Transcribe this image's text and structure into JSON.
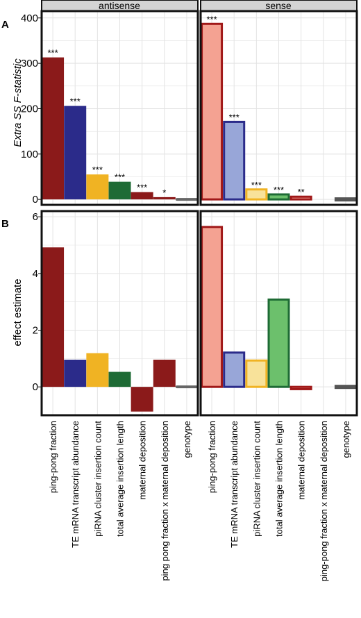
{
  "chart_data": [
    {
      "panel": "A",
      "type": "bar",
      "ylabel": "Extra SS F-statistic",
      "ylim": [
        -12,
        415
      ],
      "yticks": [
        0,
        100,
        200,
        300,
        400
      ],
      "categories": [
        "ping-pong fraction",
        "TE mRNA transcript abundance",
        "piRNA cluster insertion count",
        "total average insertion length",
        "maternal deposition",
        "ping pong fraction x maternal deposition",
        "genotype"
      ],
      "facets": [
        {
          "label": "antisense",
          "values": [
            313,
            206,
            55,
            39,
            16,
            5,
            -3
          ],
          "significance": [
            "***",
            "***",
            "***",
            "***",
            "***",
            "*",
            ""
          ]
        },
        {
          "label": "sense",
          "categories": [
            "ping-pong fraction",
            "TE mRNA transcript abundance",
            "piRNA cluster insertion count",
            "total average insertion length",
            "maternal deposition",
            "ping-pong fraction x maternal deposition",
            "genotype"
          ],
          "values": [
            387,
            171,
            22,
            11,
            6,
            null,
            -3
          ],
          "significance": [
            "***",
            "***",
            "***",
            "***",
            "**",
            "",
            ""
          ]
        }
      ],
      "grid": true,
      "legend": "none"
    },
    {
      "panel": "B",
      "type": "bar",
      "ylabel": "effect estimate",
      "ylim": [
        -1.0,
        6.2
      ],
      "yticks": [
        0,
        2,
        4,
        6
      ],
      "categories": [
        "ping-pong fraction",
        "TE mRNA transcript abundance",
        "piRNA cluster insertion count",
        "total average insertion length",
        "maternal deposition",
        "ping pong fraction x maternal deposition",
        "genotype"
      ],
      "facets": [
        {
          "label": "antisense",
          "values": [
            4.92,
            0.96,
            1.19,
            0.53,
            -0.87,
            0.96,
            -0.32
          ]
        },
        {
          "label": "sense",
          "categories": [
            "ping-pong fraction",
            "TE mRNA transcript abundance",
            "piRNA cluster insertion count",
            "total average insertion length",
            "maternal deposition",
            "ping-pong fraction x maternal deposition",
            "genotype"
          ],
          "values": [
            5.64,
            1.21,
            0.93,
            3.08,
            -0.08,
            null,
            0.07
          ]
        }
      ],
      "grid": true,
      "legend": "none"
    }
  ],
  "colors": {
    "antisense": [
      "#8B1A1A",
      "#2B2B8A",
      "#F0B323",
      "#1E6B35",
      "#8B1A1A",
      "#8B1A1A",
      "#666666"
    ],
    "sense_fill": [
      "#F4A292",
      "#98A6D8",
      "#F8E29A",
      "#6CC06C",
      "#F4A292",
      "#F4A292",
      "#BDBDBD"
    ],
    "sense_border": [
      "#A01818",
      "#2B2B8A",
      "#F0B323",
      "#1E6B35",
      "#A01818",
      "#A01818",
      "#555555"
    ],
    "strip_fill": "#D4D4D4",
    "grid": "#E3E3E3"
  },
  "panels": {
    "a_letter": "A",
    "b_letter": "B"
  }
}
